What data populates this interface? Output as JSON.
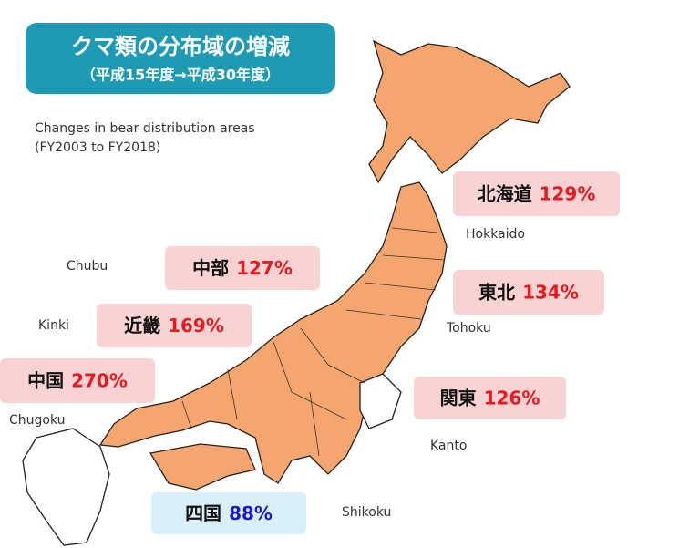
{
  "header": {
    "title": "クマ類の分布域の増減",
    "subtitle": "（平成15年度→平成30年度）"
  },
  "caption": [
    "Changes in bear distribution areas",
    "(FY2003 to FY2018)"
  ],
  "regions": [
    {
      "ja": "北海道",
      "change": "129%",
      "en": "Hokkaido",
      "color": "#e8191f",
      "box": "#f9d3d3"
    },
    {
      "ja": "東北",
      "change": "134%",
      "en": "Tohoku",
      "color": "#e8191f",
      "box": "#f9d3d3"
    },
    {
      "ja": "関東",
      "change": "126%",
      "en": "Kanto",
      "color": "#e8191f",
      "box": "#f9d3d3"
    },
    {
      "ja": "中部",
      "change": "127%",
      "en": "Chubu",
      "color": "#e8191f",
      "box": "#f9d3d3"
    },
    {
      "ja": "近畿",
      "change": "169%",
      "en": "Kinki",
      "color": "#e8191f",
      "box": "#f9d3d3"
    },
    {
      "ja": "中国",
      "change": "270%",
      "en": "Chugoku",
      "color": "#e8191f",
      "box": "#f9d3d3"
    },
    {
      "ja": "四国",
      "change": "88%",
      "en": "Shikoku",
      "color": "#1a1acc",
      "box": "#d9effa"
    }
  ]
}
